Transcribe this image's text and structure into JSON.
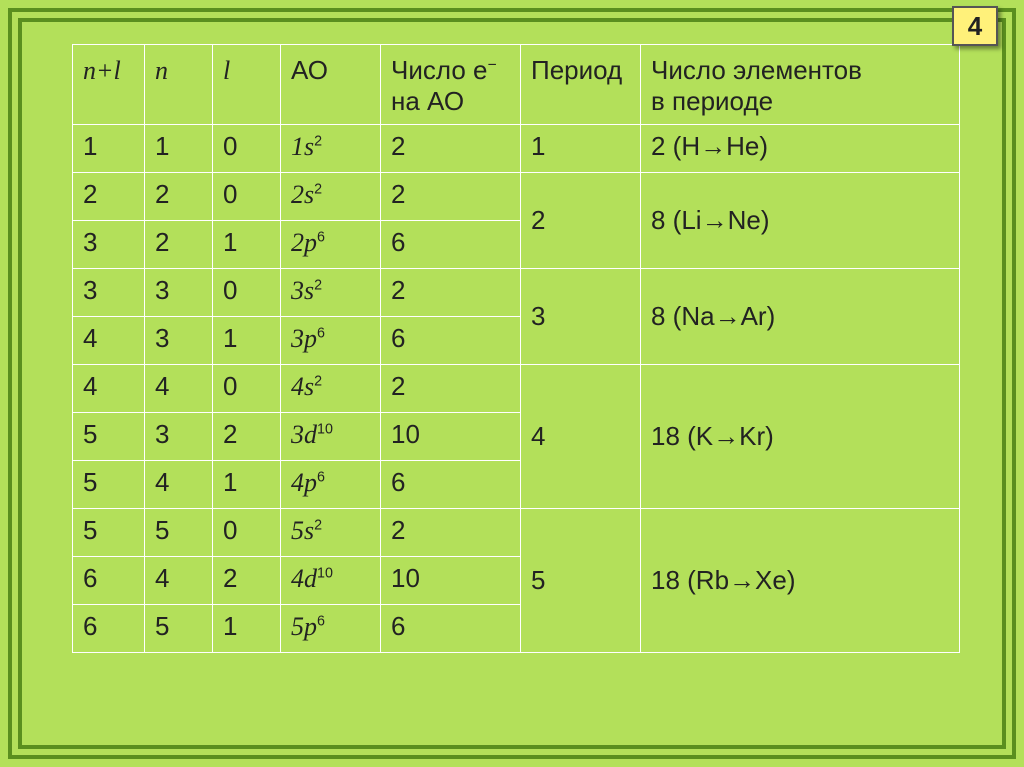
{
  "page_number": "4",
  "colors": {
    "background": "#b3e05a",
    "frame": "#5a8f1f",
    "cell_border": "#ffffff",
    "text": "#222222",
    "badge_bg": "#fff17a",
    "badge_border": "#555555"
  },
  "typography": {
    "body_fontsize": 26,
    "badge_fontsize": 26,
    "font_family_body": "Arial",
    "font_family_italic": "Times New Roman"
  },
  "headers": {
    "nl": "n+l",
    "n": "n",
    "l": "l",
    "ao": "АО",
    "e_on_ao_line1": "Число е",
    "e_on_ao_line2": "на АО",
    "period": "Период",
    "elements_line1": "Число элементов",
    "elements_line2": "в периоде"
  },
  "rows": [
    {
      "nl": "1",
      "n": "1",
      "l": "0",
      "ao_base": "1s",
      "ao_sup": "2",
      "e": "2",
      "period": "1",
      "period_span": 1,
      "elements": "2 (H→He)",
      "elements_span": 1
    },
    {
      "nl": "2",
      "n": "2",
      "l": "0",
      "ao_base": "2s",
      "ao_sup": "2",
      "e": "2",
      "period": "2",
      "period_span": 2,
      "elements": "8 (Li→Ne)",
      "elements_span": 2
    },
    {
      "nl": "3",
      "n": "2",
      "l": "1",
      "ao_base": "2p",
      "ao_sup": "6",
      "e": "6"
    },
    {
      "nl": "3",
      "n": "3",
      "l": "0",
      "ao_base": "3s",
      "ao_sup": "2",
      "e": "2",
      "period": "3",
      "period_span": 2,
      "elements": "8 (Na→Ar)",
      "elements_span": 2
    },
    {
      "nl": "4",
      "n": "3",
      "l": "1",
      "ao_base": "3p",
      "ao_sup": "6",
      "e": "6"
    },
    {
      "nl": "4",
      "n": "4",
      "l": "0",
      "ao_base": "4s",
      "ao_sup": "2",
      "e": "2",
      "period": "4",
      "period_span": 3,
      "elements": "18 (K→Kr)",
      "elements_span": 3
    },
    {
      "nl": "5",
      "n": "3",
      "l": "2",
      "ao_base": "3d",
      "ao_sup": "10",
      "e": "10"
    },
    {
      "nl": "5",
      "n": "4",
      "l": "1",
      "ao_base": "4p",
      "ao_sup": "6",
      "e": "6"
    },
    {
      "nl": "5",
      "n": "5",
      "l": "0",
      "ao_base": "5s",
      "ao_sup": "2",
      "e": "2",
      "period": "5",
      "period_span": 3,
      "elements": "18 (Rb→Xe)",
      "elements_span": 3
    },
    {
      "nl": "6",
      "n": "4",
      "l": "2",
      "ao_base": "4d",
      "ao_sup": "10",
      "e": "10"
    },
    {
      "nl": "6",
      "n": "5",
      "l": "1",
      "ao_base": "5p",
      "ao_sup": "6",
      "e": "6"
    }
  ]
}
